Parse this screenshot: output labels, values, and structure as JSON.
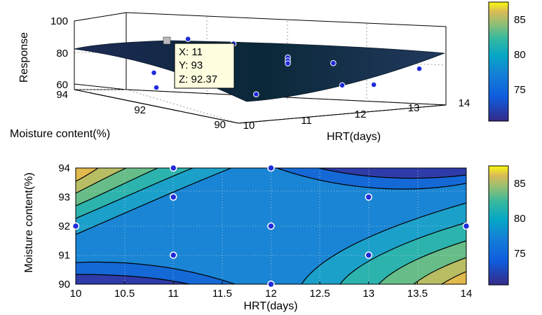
{
  "chart_data": [
    {
      "type": "surface",
      "xlabel": "HRT(days)",
      "ylabel": "Moisture content(%)",
      "zlabel": "Response",
      "x_ticks": [
        10,
        11,
        12,
        13,
        14
      ],
      "y_ticks": [
        90,
        92,
        94
      ],
      "z_ticks": [
        60,
        80,
        100
      ],
      "xlim": [
        10,
        14
      ],
      "ylim": [
        90,
        94
      ],
      "zlim": [
        60,
        100
      ],
      "grid": true,
      "colorbar": {
        "ticks": [
          75,
          80,
          85
        ],
        "range": [
          70.5,
          87.5
        ]
      },
      "design_points": [
        {
          "x": 11,
          "y": 93,
          "z": 92.37
        },
        {
          "x": 12,
          "y": 94,
          "z": 83.1
        },
        {
          "x": 12,
          "y": 92,
          "z": 84.0
        },
        {
          "x": 12,
          "y": 92,
          "z": 82.2
        },
        {
          "x": 12,
          "y": 92,
          "z": 80.6
        },
        {
          "x": 12,
          "y": 90,
          "z": 76.8
        },
        {
          "x": 13,
          "y": 93,
          "z": 74.2
        },
        {
          "x": 13,
          "y": 91,
          "z": 70.2
        },
        {
          "x": 10,
          "y": 92,
          "z": 71.0
        },
        {
          "x": 14,
          "y": 92,
          "z": 73.0
        },
        {
          "x": 11,
          "y": 91,
          "z": 69.5
        },
        {
          "x": 11,
          "y": 94,
          "z": 68.0
        }
      ],
      "datatip": {
        "lines": [
          "X: 11",
          "Y: 93",
          "Z: 92.37"
        ]
      }
    },
    {
      "type": "contour",
      "xlabel": "HRT(days)",
      "ylabel": "Moisture content(%)",
      "x_ticks": [
        10,
        10.5,
        11,
        11.5,
        12,
        12.5,
        13,
        13.5,
        14
      ],
      "y_ticks": [
        90,
        91,
        92,
        93,
        94
      ],
      "xlim": [
        10,
        14
      ],
      "ylim": [
        90,
        94
      ],
      "grid": true,
      "levels": [
        72,
        74,
        76,
        78,
        80,
        82,
        84,
        86
      ],
      "design_points": [
        {
          "x": 10,
          "y": 92
        },
        {
          "x": 11,
          "y": 94
        },
        {
          "x": 11,
          "y": 93
        },
        {
          "x": 11,
          "y": 91
        },
        {
          "x": 12,
          "y": 94
        },
        {
          "x": 12,
          "y": 92
        },
        {
          "x": 12,
          "y": 90
        },
        {
          "x": 13,
          "y": 93
        },
        {
          "x": 13,
          "y": 91
        },
        {
          "x": 14,
          "y": 92
        }
      ],
      "colorbar": {
        "ticks": [
          75,
          80,
          85
        ],
        "range": [
          70.5,
          87.5
        ]
      }
    }
  ],
  "colors": {
    "point_fill": "#1f2bd9",
    "point_edge": "#ffffff",
    "contour_line": "#000000",
    "datatip_bg": "#ffffe0"
  }
}
